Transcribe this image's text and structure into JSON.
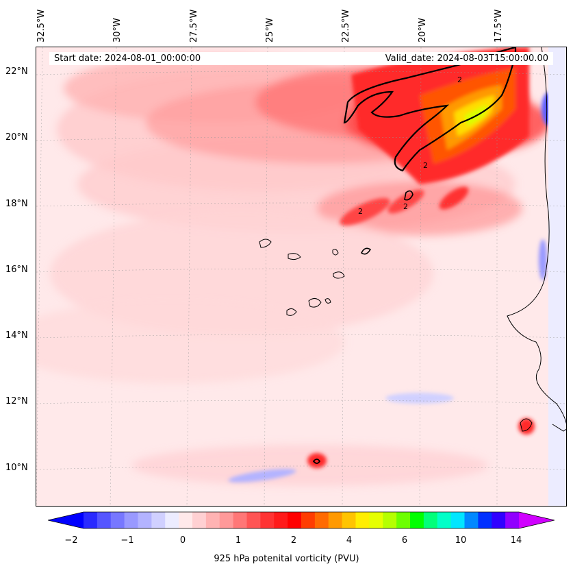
{
  "map": {
    "start_date_text": "Start date: 2024-08-01_00:00:00",
    "valid_date_text": "Valid_date: 2024-08-03T15:00:00.00",
    "longitude_labels": [
      "32.5°W",
      "30°W",
      "27.5°W",
      "25°W",
      "22.5°W",
      "20°W",
      "17.5°W"
    ],
    "latitude_labels": [
      "22°N",
      "20°N",
      "18°N",
      "16°N",
      "14°N",
      "12°N",
      "10°N"
    ],
    "contour_level_labels": [
      "2",
      "2",
      "2",
      "2"
    ],
    "gridlines": true,
    "projection": "rotated pole / Lambert style"
  },
  "colorbar": {
    "label": "925 hPa potenital vorticity (PVU)",
    "tick_labels": [
      "−2",
      "−1",
      "0",
      "1",
      "2",
      "4",
      "6",
      "10",
      "14"
    ],
    "colors": [
      "#0000ff",
      "#2a2aff",
      "#5555ff",
      "#7777ff",
      "#9999ff",
      "#b3b3ff",
      "#d0d0ff",
      "#ececff",
      "#ffe9ea",
      "#ffd0d2",
      "#ffb3b3",
      "#ff9999",
      "#ff7777",
      "#ff5555",
      "#ff3333",
      "#ff1a1a",
      "#ff0000",
      "#ff3c00",
      "#ff6a00",
      "#ff9900",
      "#ffc400",
      "#ffee00",
      "#e6ff00",
      "#b5ff00",
      "#6cff00",
      "#00ff00",
      "#00ff7a",
      "#00ffc8",
      "#00e6ff",
      "#0088ff",
      "#0030ff",
      "#3000ff",
      "#9000ff",
      "#d000ff"
    ],
    "extend": "both"
  },
  "colors": {
    "contour": "#000000",
    "coastline": "#000000"
  }
}
